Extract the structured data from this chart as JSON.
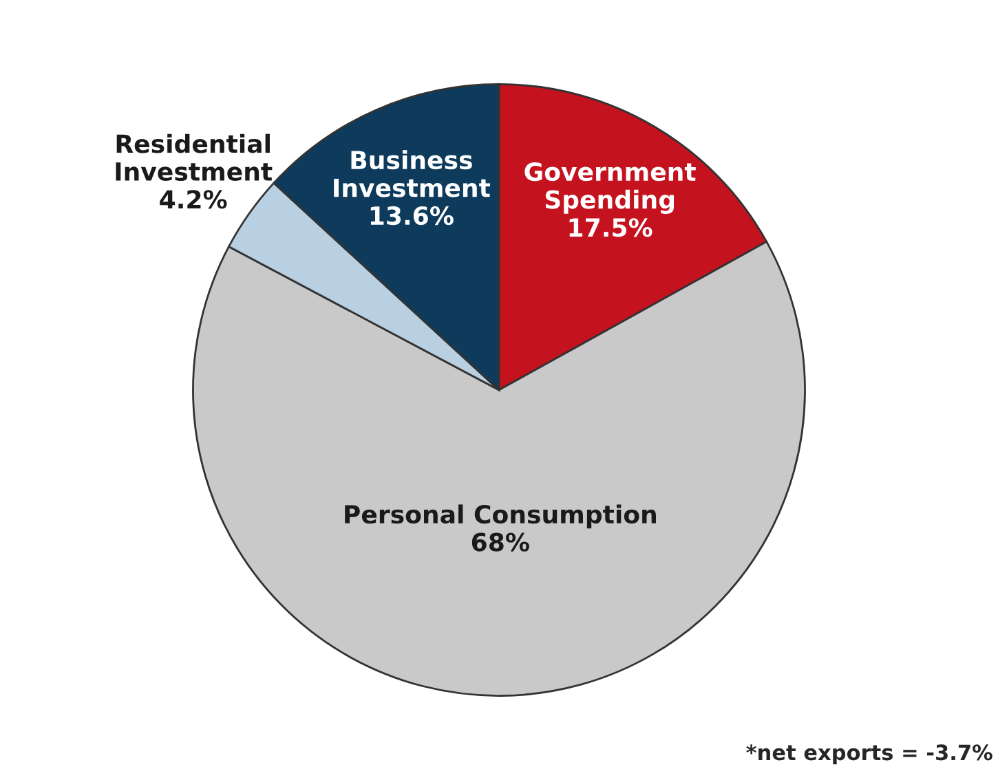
{
  "chart_data": {
    "type": "pie",
    "categories": [
      "Government\nSpending",
      "Personal Consumption",
      "Residential\nInvestment",
      "Business\nInvestment"
    ],
    "values": [
      17.5,
      68,
      4.2,
      13.6
    ],
    "value_labels": [
      "17.5%",
      "68%",
      "4.2%",
      "13.6%"
    ],
    "colors": [
      "#c4121f",
      "#c9c9c9",
      "#b9cfe2",
      "#0e3b5c"
    ],
    "annotations": [
      "*net exports = -3.7%"
    ],
    "legend": false
  }
}
